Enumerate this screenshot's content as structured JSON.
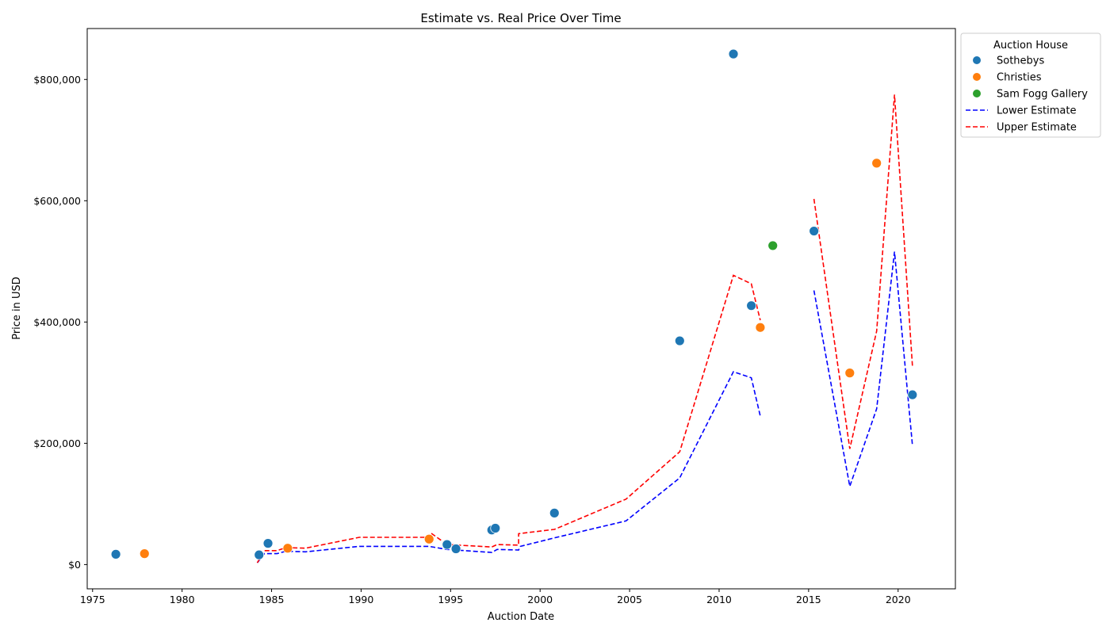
{
  "chart_data": {
    "type": "scatter",
    "title": "Estimate vs. Real Price Over Time",
    "xlabel": "Auction Date",
    "ylabel": "Price in USD",
    "xlim": [
      1974.7,
      2023.2
    ],
    "ylim": [
      -40000,
      884000
    ],
    "x_ticks": [
      1975,
      1980,
      1985,
      1990,
      1995,
      2000,
      2005,
      2010,
      2015,
      2020
    ],
    "y_ticks": [
      0,
      200000,
      400000,
      600000,
      800000
    ],
    "y_tick_labels": [
      "$0",
      "$200,000",
      "$400,000",
      "$600,000",
      "$800,000"
    ],
    "legend": {
      "title": "Auction House",
      "placement": "outside-upper-right",
      "entries": [
        "Sothebys",
        "Christies",
        "Sam Fogg Gallery",
        "Lower Estimate",
        "Upper Estimate"
      ]
    },
    "colors": {
      "Sothebys": "#1f77b4",
      "Christies": "#ff7f0e",
      "Sam Fogg Gallery": "#2ca02c",
      "Lower Estimate": "#0000ff",
      "Upper Estimate": "#ff0000"
    },
    "series": [
      {
        "name": "Sothebys",
        "points": [
          [
            1976.3,
            17000
          ],
          [
            1984.3,
            16000
          ],
          [
            1984.8,
            35000
          ],
          [
            1994.8,
            33000
          ],
          [
            1995.3,
            26000
          ],
          [
            1997.3,
            57000
          ],
          [
            1997.5,
            60000
          ],
          [
            2000.8,
            85000
          ],
          [
            2007.8,
            369000
          ],
          [
            2010.8,
            842000
          ],
          [
            2011.8,
            427000
          ],
          [
            2015.3,
            550000
          ],
          [
            2020.8,
            280000
          ]
        ]
      },
      {
        "name": "Christies",
        "points": [
          [
            1977.9,
            18000
          ],
          [
            1985.9,
            27000
          ],
          [
            1993.8,
            42000
          ],
          [
            2012.3,
            391000
          ],
          [
            2017.3,
            316000
          ],
          [
            2018.8,
            662000
          ]
        ]
      },
      {
        "name": "Sam Fogg Gallery",
        "points": [
          [
            2013.0,
            526000
          ]
        ]
      },
      {
        "name": "Lower Estimate",
        "segments": [
          [
            [
              1984.2,
              3000
            ],
            [
              1984.6,
              18000
            ],
            [
              1985.3,
              18000
            ],
            [
              1985.8,
              22000
            ],
            [
              1986.9,
              21000
            ],
            [
              1989.9,
              30000
            ],
            [
              1993.8,
              30000
            ],
            [
              1994.8,
              25000
            ],
            [
              1997.3,
              20000
            ],
            [
              1997.6,
              25000
            ],
            [
              1998.8,
              24000
            ],
            [
              1998.9,
              30000
            ],
            [
              2000.8,
              44000
            ],
            [
              2004.8,
              72000
            ],
            [
              2007.8,
              143000
            ],
            [
              2010.8,
              318000
            ],
            [
              2011.8,
              308000
            ],
            [
              2012.3,
              245000
            ]
          ],
          [
            [
              2015.3,
              452000
            ],
            [
              2017.3,
              129000
            ],
            [
              2018.8,
              257000
            ],
            [
              2019.8,
              516000
            ],
            [
              2020.8,
              197000
            ]
          ]
        ]
      },
      {
        "name": "Upper Estimate",
        "segments": [
          [
            [
              1984.2,
              3000
            ],
            [
              1984.6,
              23000
            ],
            [
              1985.3,
              23000
            ],
            [
              1985.8,
              28000
            ],
            [
              1986.9,
              27000
            ],
            [
              1989.9,
              45000
            ],
            [
              1993.8,
              45000
            ],
            [
              1993.9,
              52000
            ],
            [
              1994.8,
              33000
            ],
            [
              1997.3,
              29000
            ],
            [
              1997.6,
              33000
            ],
            [
              1998.8,
              32000
            ],
            [
              1998.8,
              51000
            ],
            [
              2000.8,
              58000
            ],
            [
              2004.8,
              108000
            ],
            [
              2007.8,
              186000
            ],
            [
              2010.8,
              477000
            ],
            [
              2011.8,
              463000
            ],
            [
              2012.3,
              403000
            ]
          ],
          [
            [
              2015.3,
              603000
            ],
            [
              2017.3,
              191000
            ],
            [
              2018.8,
              385000
            ],
            [
              2019.8,
              775000
            ],
            [
              2020.8,
              328000
            ]
          ]
        ]
      }
    ]
  }
}
